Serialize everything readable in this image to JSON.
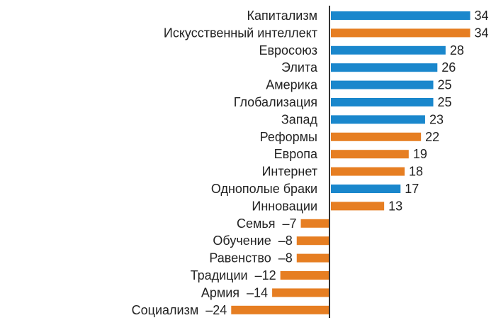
{
  "chart_data": {
    "type": "bar",
    "orientation": "horizontal",
    "categories": [
      "Капитализм",
      "Искусственный интеллект",
      "Евросоюз",
      "Элита",
      "Америка",
      "Глобализация",
      "Запад",
      "Реформы",
      "Европа",
      "Интернет",
      "Однополые браки",
      "Инновации",
      "Семья",
      "Обучение",
      "Равенство",
      "Традиции",
      "Армия",
      "Социализм"
    ],
    "values": [
      34,
      34,
      28,
      26,
      25,
      25,
      23,
      22,
      19,
      18,
      17,
      13,
      -7,
      -8,
      -8,
      -12,
      -14,
      -24
    ],
    "value_labels": [
      "34",
      "34",
      "28",
      "26",
      "25",
      "25",
      "23",
      "22",
      "19",
      "18",
      "17",
      "13",
      "–7",
      "–8",
      "–8",
      "–12",
      "–14",
      "–24"
    ],
    "bar_colors": [
      "#1a87cc",
      "#e67e22",
      "#1a87cc",
      "#1a87cc",
      "#1a87cc",
      "#1a87cc",
      "#1a87cc",
      "#e67e22",
      "#e67e22",
      "#e67e22",
      "#1a87cc",
      "#e67e22",
      "#e67e22",
      "#e67e22",
      "#e67e22",
      "#e67e22",
      "#e67e22",
      "#e67e22"
    ],
    "colors": {
      "blue": "#1a87cc",
      "orange": "#e67e22",
      "axis": "#333333"
    },
    "title": "",
    "xlabel": "",
    "ylabel": "",
    "xlim": [
      -24,
      34
    ],
    "grid": false,
    "legend": "none"
  }
}
